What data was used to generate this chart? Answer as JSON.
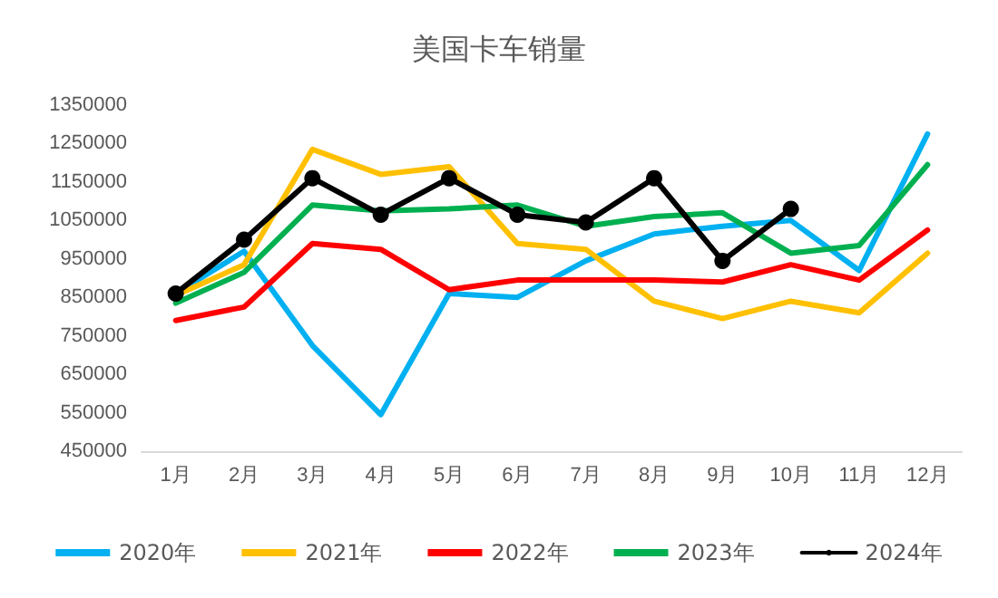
{
  "chart_data": {
    "type": "line",
    "title": "美国卡车销量",
    "categories": [
      "1月",
      "2月",
      "3月",
      "4月",
      "5月",
      "6月",
      "7月",
      "8月",
      "9月",
      "10月",
      "11月",
      "12月"
    ],
    "series": [
      {
        "name": "2020年",
        "color": "#00b0f0",
        "values": [
          860000,
          970000,
          725000,
          545000,
          860000,
          850000,
          945000,
          1015000,
          1035000,
          1050000,
          920000,
          1275000
        ]
      },
      {
        "name": "2021年",
        "color": "#ffc000",
        "values": [
          855000,
          935000,
          1235000,
          1170000,
          1190000,
          990000,
          975000,
          840000,
          795000,
          840000,
          810000,
          965000
        ]
      },
      {
        "name": "2022年",
        "color": "#ff0000",
        "values": [
          790000,
          825000,
          990000,
          975000,
          870000,
          895000,
          895000,
          895000,
          890000,
          935000,
          895000,
          1025000
        ]
      },
      {
        "name": "2023年",
        "color": "#00b050",
        "values": [
          835000,
          915000,
          1090000,
          1075000,
          1080000,
          1090000,
          1035000,
          1060000,
          1070000,
          965000,
          985000,
          1195000
        ]
      },
      {
        "name": "2024年",
        "color": "#000000",
        "marker": "circle",
        "values": [
          860000,
          1000000,
          1160000,
          1065000,
          1160000,
          1065000,
          1045000,
          1160000,
          945000,
          1080000,
          null,
          null
        ]
      }
    ],
    "ylim": [
      450000,
      1350000
    ],
    "yticks": [
      450000,
      550000,
      650000,
      750000,
      850000,
      950000,
      1050000,
      1150000,
      1250000,
      1350000
    ],
    "grid": false,
    "legend": "bottom",
    "marker": "none",
    "line_style": "solid"
  }
}
